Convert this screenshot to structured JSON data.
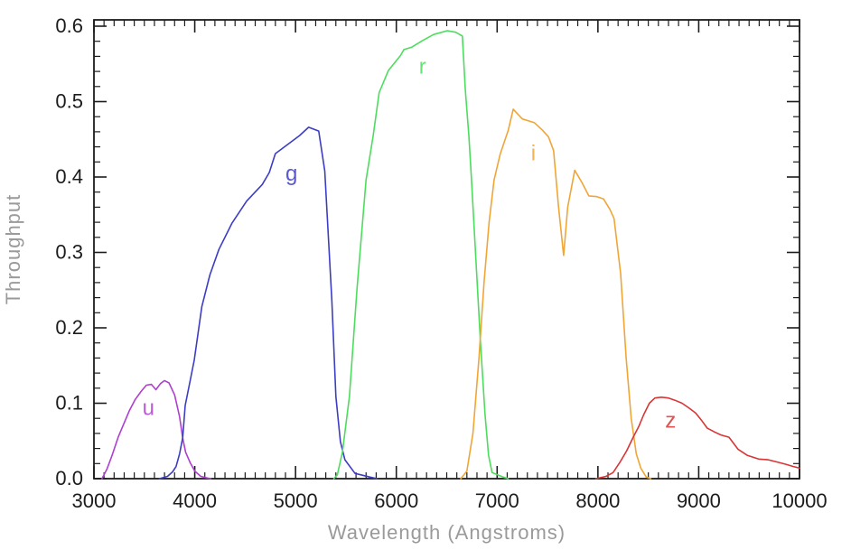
{
  "figure": {
    "background": "#ffffff",
    "axis_color": "#1c1c1c",
    "tick_label_color": "#1c1c1c",
    "axis_title_color": "#9a9a9a"
  },
  "chart_data": {
    "type": "line",
    "title": "",
    "xlabel": "Wavelength (Angstroms)",
    "ylabel": "Throughput",
    "xlim": [
      3000,
      10000
    ],
    "ylim": [
      0,
      0.608
    ],
    "grid": false,
    "legend_position": "inline-letters-on-curves",
    "xticks": [
      3000,
      4000,
      5000,
      6000,
      7000,
      8000,
      9000,
      10000
    ],
    "xtick_labels": [
      "3000",
      "4000",
      "5000",
      "6000",
      "7000",
      "8000",
      "9000",
      "10000"
    ],
    "x_minor_step": 100,
    "yticks": [
      0.0,
      0.1,
      0.2,
      0.3,
      0.4,
      0.5,
      0.6
    ],
    "ytick_labels": [
      "0.0",
      "0.1",
      "0.2",
      "0.3",
      "0.4",
      "0.5",
      "0.6"
    ],
    "y_minor_step": 0.02,
    "series": [
      {
        "name": "u",
        "label": "u",
        "color": "#AE3FD0",
        "label_pos": [
          3540,
          0.094
        ],
        "points": [
          [
            3080,
            0
          ],
          [
            3130,
            0.013
          ],
          [
            3180,
            0.031
          ],
          [
            3240,
            0.055
          ],
          [
            3300,
            0.074
          ],
          [
            3350,
            0.09
          ],
          [
            3410,
            0.105
          ],
          [
            3470,
            0.116
          ],
          [
            3520,
            0.124
          ],
          [
            3570,
            0.125
          ],
          [
            3615,
            0.118
          ],
          [
            3660,
            0.126
          ],
          [
            3700,
            0.13
          ],
          [
            3745,
            0.127
          ],
          [
            3800,
            0.111
          ],
          [
            3850,
            0.082
          ],
          [
            3880,
            0.054
          ],
          [
            3910,
            0.035
          ],
          [
            3955,
            0.021
          ],
          [
            4000,
            0.01
          ],
          [
            4060,
            0.003
          ],
          [
            4120,
            0.001
          ],
          [
            4160,
            0
          ]
        ]
      },
      {
        "name": "g",
        "label": "g",
        "color": "#3D3DC4",
        "label_pos": [
          4960,
          0.405
        ],
        "points": [
          [
            3650,
            0
          ],
          [
            3730,
            0.003
          ],
          [
            3780,
            0.009
          ],
          [
            3815,
            0.016
          ],
          [
            3850,
            0.033
          ],
          [
            3880,
            0.054
          ],
          [
            3905,
            0.097
          ],
          [
            3950,
            0.127
          ],
          [
            3995,
            0.157
          ],
          [
            4070,
            0.228
          ],
          [
            4150,
            0.27
          ],
          [
            4240,
            0.304
          ],
          [
            4370,
            0.339
          ],
          [
            4515,
            0.368
          ],
          [
            4670,
            0.39
          ],
          [
            4740,
            0.406
          ],
          [
            4800,
            0.431
          ],
          [
            4920,
            0.443
          ],
          [
            5040,
            0.455
          ],
          [
            5130,
            0.466
          ],
          [
            5230,
            0.461
          ],
          [
            5290,
            0.408
          ],
          [
            5360,
            0.237
          ],
          [
            5400,
            0.109
          ],
          [
            5445,
            0.049
          ],
          [
            5490,
            0.025
          ],
          [
            5590,
            0.007
          ],
          [
            5740,
            0.002
          ],
          [
            5810,
            0
          ]
        ]
      },
      {
        "name": "r",
        "label": "r",
        "color": "#4EDC5E",
        "label_pos": [
          6260,
          0.547
        ],
        "points": [
          [
            5380,
            0
          ],
          [
            5415,
            0.005
          ],
          [
            5465,
            0.035
          ],
          [
            5535,
            0.109
          ],
          [
            5610,
            0.252
          ],
          [
            5700,
            0.396
          ],
          [
            5770,
            0.455
          ],
          [
            5830,
            0.512
          ],
          [
            5920,
            0.541
          ],
          [
            6040,
            0.561
          ],
          [
            6075,
            0.569
          ],
          [
            6150,
            0.572
          ],
          [
            6260,
            0.581
          ],
          [
            6370,
            0.589
          ],
          [
            6505,
            0.594
          ],
          [
            6590,
            0.592
          ],
          [
            6655,
            0.587
          ],
          [
            6685,
            0.515
          ],
          [
            6720,
            0.455
          ],
          [
            6745,
            0.399
          ],
          [
            6790,
            0.288
          ],
          [
            6835,
            0.18
          ],
          [
            6880,
            0.085
          ],
          [
            6915,
            0.031
          ],
          [
            6950,
            0.008
          ],
          [
            7060,
            0.002
          ],
          [
            7110,
            0
          ]
        ]
      },
      {
        "name": "i",
        "label": "i",
        "color": "#F0A637",
        "label_pos": [
          7360,
          0.432
        ],
        "points": [
          [
            6640,
            0
          ],
          [
            6700,
            0.01
          ],
          [
            6760,
            0.06
          ],
          [
            6820,
            0.16
          ],
          [
            6870,
            0.26
          ],
          [
            6920,
            0.34
          ],
          [
            6970,
            0.396
          ],
          [
            7030,
            0.43
          ],
          [
            7110,
            0.462
          ],
          [
            7160,
            0.49
          ],
          [
            7250,
            0.477
          ],
          [
            7370,
            0.472
          ],
          [
            7450,
            0.462
          ],
          [
            7510,
            0.453
          ],
          [
            7560,
            0.435
          ],
          [
            7610,
            0.36
          ],
          [
            7660,
            0.296
          ],
          [
            7700,
            0.36
          ],
          [
            7770,
            0.409
          ],
          [
            7840,
            0.393
          ],
          [
            7910,
            0.375
          ],
          [
            7990,
            0.374
          ],
          [
            8055,
            0.371
          ],
          [
            8120,
            0.357
          ],
          [
            8160,
            0.345
          ],
          [
            8225,
            0.272
          ],
          [
            8280,
            0.16
          ],
          [
            8330,
            0.08
          ],
          [
            8380,
            0.033
          ],
          [
            8425,
            0.014
          ],
          [
            8480,
            0.002
          ],
          [
            8525,
            0
          ]
        ]
      },
      {
        "name": "z",
        "label": "z",
        "color": "#D83636",
        "label_pos": [
          8720,
          0.077
        ],
        "points": [
          [
            7980,
            0
          ],
          [
            8080,
            0.003
          ],
          [
            8150,
            0.008
          ],
          [
            8220,
            0.022
          ],
          [
            8285,
            0.037
          ],
          [
            8350,
            0.055
          ],
          [
            8405,
            0.069
          ],
          [
            8455,
            0.085
          ],
          [
            8510,
            0.1
          ],
          [
            8565,
            0.107
          ],
          [
            8630,
            0.108
          ],
          [
            8700,
            0.107
          ],
          [
            8765,
            0.104
          ],
          [
            8835,
            0.1
          ],
          [
            8900,
            0.094
          ],
          [
            8970,
            0.087
          ],
          [
            9030,
            0.077
          ],
          [
            9085,
            0.067
          ],
          [
            9155,
            0.062
          ],
          [
            9220,
            0.058
          ],
          [
            9300,
            0.055
          ],
          [
            9390,
            0.039
          ],
          [
            9480,
            0.031
          ],
          [
            9595,
            0.026
          ],
          [
            9690,
            0.025
          ],
          [
            9780,
            0.022
          ],
          [
            9865,
            0.019
          ],
          [
            9940,
            0.016
          ],
          [
            10000,
            0.014
          ]
        ]
      }
    ]
  }
}
